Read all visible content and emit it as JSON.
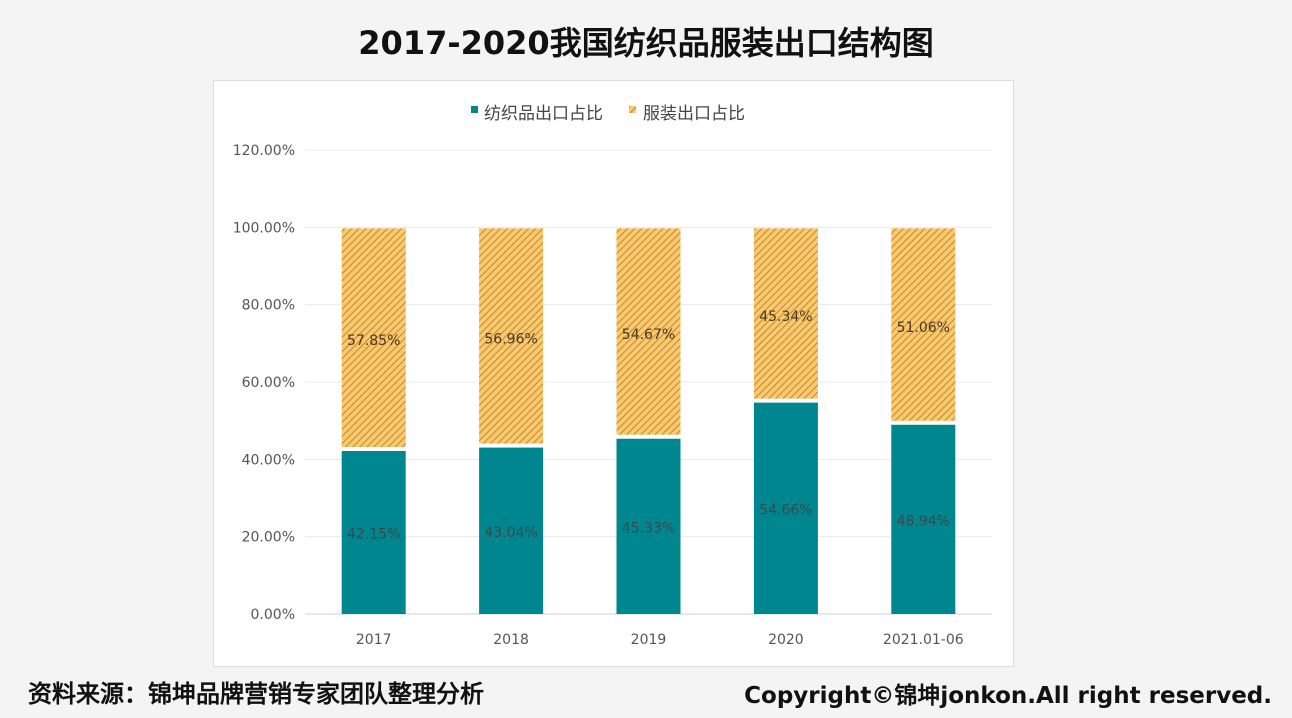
{
  "title": "2017-2020我国纺织品服装出口结构图",
  "footer": {
    "source": "资料来源：锦坤品牌营销专家团队整理分析",
    "copyright": "Copyright©锦坤jonkon.All right reserved."
  },
  "chart_data": {
    "type": "bar",
    "stacked": true,
    "title": "",
    "categories": [
      "2017",
      "2018",
      "2019",
      "2020",
      "2021.01-06"
    ],
    "series": [
      {
        "name": "纺织品出口占比",
        "values": [
          42.15,
          43.04,
          45.33,
          54.66,
          48.94
        ],
        "labels": [
          "42.15%",
          "43.04%",
          "45.33%",
          "54.66%",
          "48.94%"
        ],
        "color": "#00868f"
      },
      {
        "name": "服装出口占比",
        "values": [
          57.85,
          56.96,
          54.67,
          45.34,
          51.06
        ],
        "labels": [
          "57.85%",
          "56.96%",
          "54.67%",
          "45.34%",
          "51.06%"
        ],
        "color": "#f7c26b",
        "pattern": "diagonal-hatch",
        "hatch_color": "#b27a1c"
      }
    ],
    "yticks": [
      "0.00%",
      "20.00%",
      "40.00%",
      "60.00%",
      "80.00%",
      "100.00%",
      "120.00%"
    ],
    "ylim": [
      0,
      120
    ],
    "grid": true,
    "legend": "top"
  }
}
